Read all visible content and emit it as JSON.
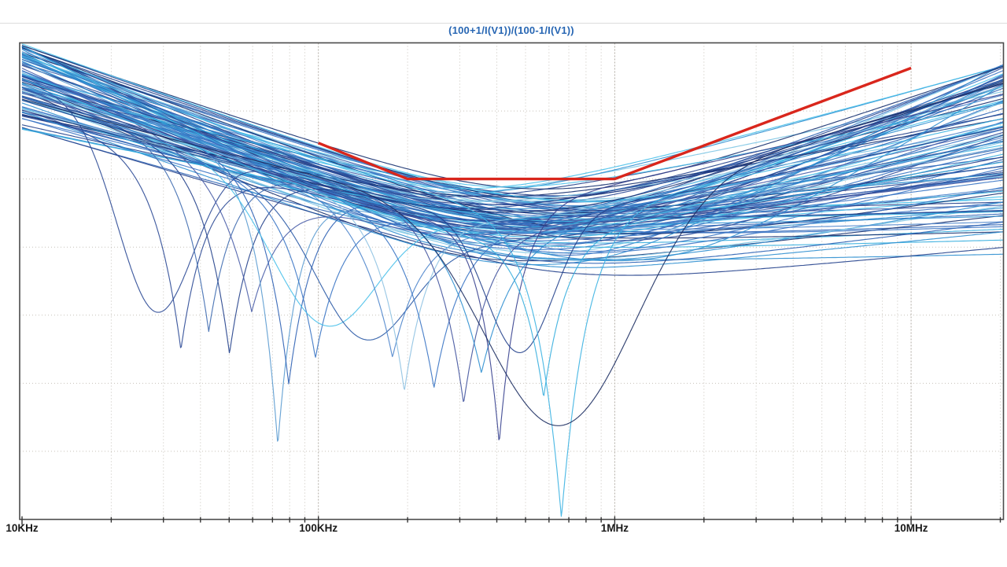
{
  "frame": {
    "background": "#ffffff",
    "border_color": "#4b4b4b",
    "tick_color": "#333333",
    "label_color": "#181818",
    "divider_color": "#dcdcdc"
  },
  "chart_data": {
    "type": "line",
    "title": "(100+1/I(V1))/(100-1/I(V1))",
    "title_color": "#2766b3",
    "x_axis": {
      "scale": "log",
      "unit": "Hz",
      "ticks": [
        "10KHz",
        "100KHz",
        "1MHz",
        "10MHz"
      ],
      "tick_values_hz": [
        10000,
        100000,
        1000000,
        10000000
      ],
      "range_hz": [
        10000,
        20500000
      ],
      "span_decades": 3.312
    },
    "y_axis": {
      "tick_labels_visible": false,
      "grid_divisions": 7
    },
    "grid": {
      "horizontal_divisions": [
        1,
        2,
        3,
        4,
        5,
        6
      ],
      "vertical": "log-decades-with-minor-lines",
      "color_minor": "#c6c1b9",
      "color_decade": "#b2ada5",
      "style": "dotted"
    },
    "limit_line": {
      "label": "mask-limit",
      "color": "#d9261c",
      "stroke_px": 3.4,
      "points": [
        {
          "hz": 100000,
          "y_div": 1.47
        },
        {
          "hz": 200000,
          "y_div": 2.0
        },
        {
          "hz": 1000000,
          "y_div": 2.0
        },
        {
          "hz": 10000000,
          "y_div": 0.37
        }
      ]
    },
    "monte_carlo": {
      "description": "family of AC-sweep traces forming a bathtub-shaped band with resonant notch outliers; y measured in grid divisions from top border",
      "trace_count_smooth": 92,
      "seed": 42,
      "x_log_span_decades": 3.312,
      "envelope": {
        "floor_div": [
          2.48,
          3.55
        ],
        "left_edge_y_div": [
          0.05,
          1.3
        ],
        "right_edge_y_div": [
          0.33,
          3.2
        ],
        "left_knee_decades": [
          1.3,
          1.85
        ]
      },
      "top_trace": {
        "color": "#4fc3ec",
        "floor_div": 2.45,
        "left_edge_y_div": 0.03,
        "right_edge_y_div": 0.9,
        "left_knee_decades": 1.52,
        "right_knee_decades": 1.6
      },
      "notch_traces": [
        {
          "hz": 28000,
          "u": 0.45,
          "tip_div": 3.95,
          "width": 0.18,
          "shape": "u",
          "color": "#2c4a96"
        },
        {
          "hz": 34000,
          "u": 0.536,
          "tip_div": 4.51,
          "width": 0.09,
          "shape": "v",
          "color": "#2c4a96"
        },
        {
          "hz": 43000,
          "u": 0.63,
          "tip_div": 4.24,
          "width": 0.09,
          "shape": "v",
          "color": "#3f6cb0"
        },
        {
          "hz": 50000,
          "u": 0.7,
          "tip_div": 4.57,
          "width": 0.09,
          "shape": "v",
          "color": "#24418c"
        },
        {
          "hz": 60000,
          "u": 0.775,
          "tip_div": 3.95,
          "width": 0.11,
          "shape": "v",
          "color": "#4a5ea8"
        },
        {
          "hz": 73000,
          "u": 0.863,
          "tip_div": 5.91,
          "width": 0.07,
          "shape": "v",
          "color": "#5b9bd0"
        },
        {
          "hz": 79000,
          "u": 0.9,
          "tip_div": 5.01,
          "width": 0.09,
          "shape": "v",
          "color": "#2f62b5"
        },
        {
          "hz": 98000,
          "u": 0.99,
          "tip_div": 4.63,
          "width": 0.1,
          "shape": "v",
          "color": "#3a74c4"
        },
        {
          "hz": 105000,
          "u": 1.02,
          "tip_div": 4.15,
          "width": 0.25,
          "shape": "u",
          "color": "#49c0ea"
        },
        {
          "hz": 141000,
          "u": 1.15,
          "tip_div": 4.35,
          "width": 0.22,
          "shape": "u",
          "color": "#2b5aa6"
        },
        {
          "hz": 178000,
          "u": 1.25,
          "tip_div": 4.62,
          "width": 0.11,
          "shape": "v",
          "color": "#4f86cc"
        },
        {
          "hz": 195000,
          "u": 1.29,
          "tip_div": 5.12,
          "width": 0.09,
          "shape": "v",
          "color": "#8fc2e2"
        },
        {
          "hz": 245000,
          "u": 1.39,
          "tip_div": 5.07,
          "width": 0.1,
          "shape": "v",
          "color": "#3a74c4"
        },
        {
          "hz": 309000,
          "u": 1.49,
          "tip_div": 5.3,
          "width": 0.09,
          "shape": "v",
          "color": "#42549e"
        },
        {
          "hz": 355000,
          "u": 1.55,
          "tip_div": 4.85,
          "width": 0.12,
          "shape": "v",
          "color": "#2f8fd0"
        },
        {
          "hz": 407000,
          "u": 1.61,
          "tip_div": 5.88,
          "width": 0.07,
          "shape": "v",
          "color": "#37418f"
        },
        {
          "hz": 479000,
          "u": 1.68,
          "tip_div": 4.55,
          "width": 0.16,
          "shape": "u",
          "color": "#24418c"
        },
        {
          "hz": 575000,
          "u": 1.76,
          "tip_div": 5.21,
          "width": 0.08,
          "shape": "v",
          "color": "#36aede"
        },
        {
          "hz": 661000,
          "u": 1.82,
          "tip_div": 6.98,
          "width": 0.09,
          "shape": "v",
          "color": "#3cb2e2"
        },
        {
          "hz": 661000,
          "u": 1.82,
          "tip_div": 5.62,
          "width": 0.35,
          "shape": "u",
          "color": "#1c2d62"
        }
      ],
      "palette": [
        "#16306f",
        "#24418c",
        "#2c4a96",
        "#3a5ca8",
        "#2b62b4",
        "#3a74c4",
        "#4f86cc",
        "#2f8fd0",
        "#36aede",
        "#49c0ea",
        "#7fc6e4",
        "#2b62b4",
        "#3a74c4",
        "#24418c"
      ]
    }
  }
}
